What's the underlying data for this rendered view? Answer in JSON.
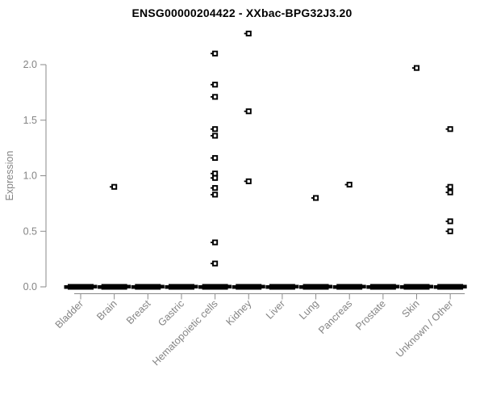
{
  "chart_data": {
    "type": "scatter",
    "title": "ENSG00000204422 - XXbac-BPG32J3.20",
    "xlabel": "",
    "ylabel": "Expression",
    "ylim": [
      0.0,
      2.35
    ],
    "yticks": [
      "0.0",
      "0.5",
      "1.0",
      "1.5",
      "2.0"
    ],
    "grid": false,
    "legend": null,
    "marker": "open-square",
    "categories": [
      "Bladder",
      "Brain",
      "Breast",
      "Gastric",
      "Hematopoietic cells",
      "Kidney",
      "Liver",
      "Lung",
      "Pancreas",
      "Prostate",
      "Skin",
      "Unknown / Other"
    ],
    "series": [
      {
        "category": "Bladder",
        "values": [],
        "zero_cluster": true
      },
      {
        "category": "Brain",
        "values": [
          0.9
        ],
        "zero_cluster": true
      },
      {
        "category": "Breast",
        "values": [],
        "zero_cluster": true
      },
      {
        "category": "Gastric",
        "values": [],
        "zero_cluster": true
      },
      {
        "category": "Hematopoietic cells",
        "values": [
          2.1,
          1.82,
          1.71,
          1.42,
          1.36,
          1.16,
          1.02,
          0.98,
          0.89,
          0.83,
          0.4,
          0.21
        ],
        "zero_cluster": true
      },
      {
        "category": "Kidney",
        "values": [
          2.28,
          1.58,
          0.95
        ],
        "zero_cluster": true
      },
      {
        "category": "Liver",
        "values": [],
        "zero_cluster": true
      },
      {
        "category": "Lung",
        "values": [
          0.8
        ],
        "zero_cluster": true
      },
      {
        "category": "Pancreas",
        "values": [
          0.92
        ],
        "zero_cluster": true
      },
      {
        "category": "Prostate",
        "values": [],
        "zero_cluster": true
      },
      {
        "category": "Skin",
        "values": [
          1.97
        ],
        "zero_cluster": true
      },
      {
        "category": "Unknown / Other",
        "values": [
          1.42,
          0.9,
          0.85,
          0.59,
          0.5
        ],
        "zero_cluster": true
      }
    ],
    "colors": {
      "points": "#000000",
      "zero_bar": "#000000",
      "axis_line": "#8a8a8a",
      "tick_text": "#848484",
      "axis_label": "#848484",
      "title": "#000000",
      "background": "#ffffff"
    }
  }
}
